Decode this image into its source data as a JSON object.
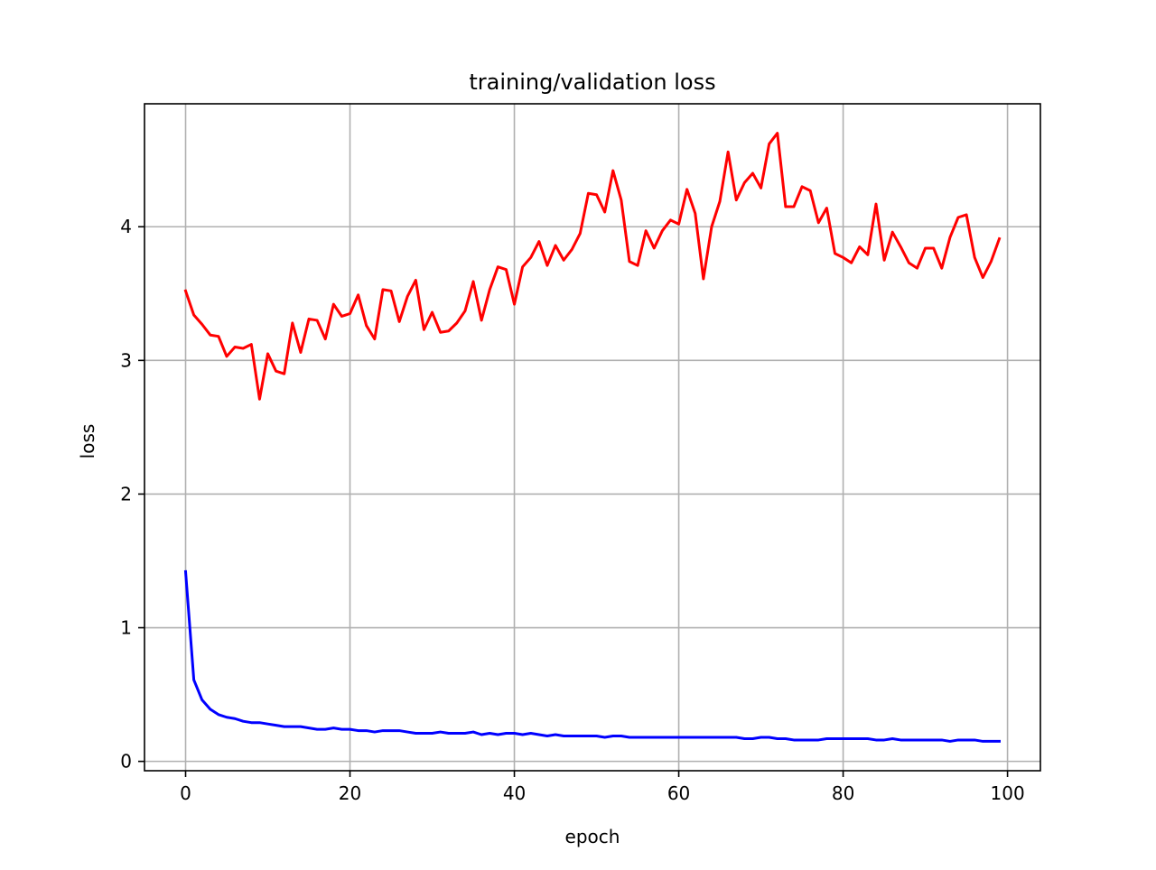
{
  "chart_data": {
    "type": "line",
    "title": "training/validation loss",
    "xlabel": "epoch",
    "ylabel": "loss",
    "xlim": [
      -5,
      104
    ],
    "ylim": [
      -0.07,
      4.92
    ],
    "xticks": [
      0,
      20,
      40,
      60,
      80,
      100
    ],
    "yticks": [
      0,
      1,
      2,
      3,
      4
    ],
    "grid": true,
    "legend": "none",
    "series": [
      {
        "color": "#ff0000",
        "x": [
          0,
          1,
          2,
          3,
          4,
          5,
          6,
          7,
          8,
          9,
          10,
          11,
          12,
          13,
          14,
          15,
          16,
          17,
          18,
          19,
          20,
          21,
          22,
          23,
          24,
          25,
          26,
          27,
          28,
          29,
          30,
          31,
          32,
          33,
          34,
          35,
          36,
          37,
          38,
          39,
          40,
          41,
          42,
          43,
          44,
          45,
          46,
          47,
          48,
          49,
          50,
          51,
          52,
          53,
          54,
          55,
          56,
          57,
          58,
          59,
          60,
          61,
          62,
          63,
          64,
          65,
          66,
          67,
          68,
          69,
          70,
          71,
          72,
          73,
          74,
          75,
          76,
          77,
          78,
          79,
          80,
          81,
          82,
          83,
          84,
          85,
          86,
          87,
          88,
          89,
          90,
          91,
          92,
          93,
          94,
          95,
          96,
          97,
          98,
          99
        ],
        "values": [
          3.52,
          3.34,
          3.27,
          3.19,
          3.18,
          3.03,
          3.1,
          3.09,
          3.12,
          2.71,
          3.05,
          2.92,
          2.9,
          3.28,
          3.06,
          3.31,
          3.3,
          3.16,
          3.42,
          3.33,
          3.35,
          3.49,
          3.26,
          3.16,
          3.53,
          3.52,
          3.29,
          3.48,
          3.6,
          3.23,
          3.36,
          3.21,
          3.22,
          3.28,
          3.37,
          3.59,
          3.3,
          3.53,
          3.7,
          3.68,
          3.42,
          3.7,
          3.77,
          3.89,
          3.71,
          3.86,
          3.75,
          3.83,
          3.95,
          4.25,
          4.24,
          4.11,
          4.42,
          4.2,
          3.74,
          3.71,
          3.97,
          3.84,
          3.97,
          4.05,
          4.02,
          4.28,
          4.1,
          3.61,
          4.0,
          4.19,
          4.56,
          4.2,
          4.33,
          4.4,
          4.29,
          4.62,
          4.7,
          4.15,
          4.15,
          4.3,
          4.27,
          4.03,
          4.14,
          3.8,
          3.77,
          3.73,
          3.85,
          3.79,
          4.17,
          3.75,
          3.96,
          3.85,
          3.73,
          3.69,
          3.84,
          3.84,
          3.69,
          3.92,
          4.07,
          4.09,
          3.77,
          3.62,
          3.74,
          3.91
        ]
      },
      {
        "color": "#0000ff",
        "x": [
          0,
          1,
          2,
          3,
          4,
          5,
          6,
          7,
          8,
          9,
          10,
          11,
          12,
          13,
          14,
          15,
          16,
          17,
          18,
          19,
          20,
          21,
          22,
          23,
          24,
          25,
          26,
          27,
          28,
          29,
          30,
          31,
          32,
          33,
          34,
          35,
          36,
          37,
          38,
          39,
          40,
          41,
          42,
          43,
          44,
          45,
          46,
          47,
          48,
          49,
          50,
          51,
          52,
          53,
          54,
          55,
          56,
          57,
          58,
          59,
          60,
          61,
          62,
          63,
          64,
          65,
          66,
          67,
          68,
          69,
          70,
          71,
          72,
          73,
          74,
          75,
          76,
          77,
          78,
          79,
          80,
          81,
          82,
          83,
          84,
          85,
          86,
          87,
          88,
          89,
          90,
          91,
          92,
          93,
          94,
          95,
          96,
          97,
          98,
          99
        ],
        "values": [
          1.42,
          0.61,
          0.46,
          0.39,
          0.35,
          0.33,
          0.32,
          0.3,
          0.29,
          0.29,
          0.28,
          0.27,
          0.26,
          0.26,
          0.26,
          0.25,
          0.24,
          0.24,
          0.25,
          0.24,
          0.24,
          0.23,
          0.23,
          0.22,
          0.23,
          0.23,
          0.23,
          0.22,
          0.21,
          0.21,
          0.21,
          0.22,
          0.21,
          0.21,
          0.21,
          0.22,
          0.2,
          0.21,
          0.2,
          0.21,
          0.21,
          0.2,
          0.21,
          0.2,
          0.19,
          0.2,
          0.19,
          0.19,
          0.19,
          0.19,
          0.19,
          0.18,
          0.19,
          0.19,
          0.18,
          0.18,
          0.18,
          0.18,
          0.18,
          0.18,
          0.18,
          0.18,
          0.18,
          0.18,
          0.18,
          0.18,
          0.18,
          0.18,
          0.17,
          0.17,
          0.18,
          0.18,
          0.17,
          0.17,
          0.16,
          0.16,
          0.16,
          0.16,
          0.17,
          0.17,
          0.17,
          0.17,
          0.17,
          0.17,
          0.16,
          0.16,
          0.17,
          0.16,
          0.16,
          0.16,
          0.16,
          0.16,
          0.16,
          0.15,
          0.16,
          0.16,
          0.16,
          0.15,
          0.15,
          0.15
        ]
      }
    ]
  }
}
